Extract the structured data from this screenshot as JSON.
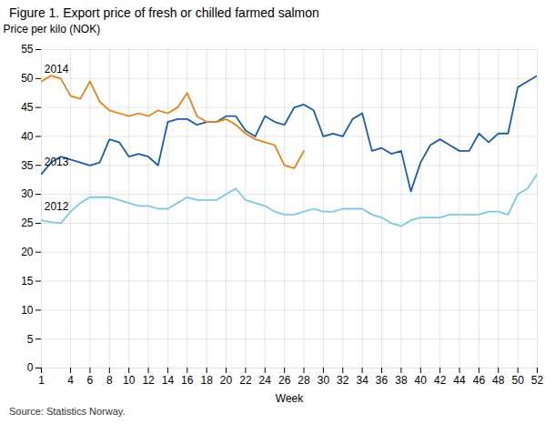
{
  "chart_data": {
    "type": "line",
    "title": "Figure 1. Export price of fresh or chilled farmed salmon",
    "ylabel": "Price per kilo (NOK)",
    "xlabel": "Week",
    "source": "Source: Statistics Norway.",
    "x": [
      1,
      2,
      3,
      4,
      5,
      6,
      7,
      8,
      9,
      10,
      11,
      12,
      13,
      14,
      15,
      16,
      17,
      18,
      19,
      20,
      21,
      22,
      23,
      24,
      25,
      26,
      27,
      28,
      29,
      30,
      31,
      32,
      33,
      34,
      35,
      36,
      37,
      38,
      39,
      40,
      41,
      42,
      43,
      44,
      45,
      46,
      47,
      48,
      49,
      50,
      51,
      52
    ],
    "series": [
      {
        "name": "2012",
        "color": "#7EC8E3",
        "values": [
          25.5,
          25.2,
          25.0,
          27.0,
          28.5,
          29.5,
          29.5,
          29.5,
          29.0,
          28.5,
          28.0,
          28.0,
          27.5,
          27.5,
          28.5,
          29.5,
          29.0,
          29.0,
          29.0,
          30.0,
          31.0,
          29.0,
          28.5,
          28.0,
          27.0,
          26.5,
          26.5,
          27.0,
          27.5,
          27.0,
          27.0,
          27.5,
          27.5,
          27.5,
          26.5,
          26.0,
          25.0,
          24.5,
          25.5,
          26.0,
          26.0,
          26.0,
          26.5,
          26.5,
          26.5,
          26.5,
          27.0,
          27.0,
          26.5,
          30.0,
          31.0,
          33.5
        ]
      },
      {
        "name": "2013",
        "color": "#1B5EA6",
        "values": [
          33.5,
          35.5,
          36.5,
          36.0,
          35.5,
          35.0,
          35.5,
          39.5,
          39.0,
          36.5,
          37.0,
          36.5,
          35.0,
          42.5,
          43.0,
          43.0,
          42.0,
          42.5,
          42.5,
          43.5,
          43.5,
          41.0,
          40.0,
          43.5,
          42.5,
          42.0,
          45.0,
          45.5,
          44.5,
          40.0,
          40.5,
          40.0,
          43.0,
          44.0,
          37.5,
          38.0,
          37.0,
          37.5,
          30.5,
          35.5,
          38.5,
          39.5,
          38.5,
          37.5,
          37.5,
          40.5,
          39.0,
          40.5,
          40.5,
          48.5,
          49.5,
          50.5
        ]
      },
      {
        "name": "2014",
        "color": "#E8821A",
        "values": [
          49.5,
          50.5,
          50.0,
          47.0,
          46.5,
          49.5,
          46.0,
          44.5,
          44.0,
          43.5,
          44.0,
          43.5,
          44.5,
          44.0,
          45.0,
          47.5,
          43.5,
          42.5,
          42.5,
          43.0,
          42.0,
          40.5,
          39.5,
          39.0,
          38.5,
          35.0,
          34.5,
          37.5,
          null,
          null,
          null,
          null,
          null,
          null,
          null,
          null,
          null,
          null,
          null,
          null,
          null,
          null,
          null,
          null,
          null,
          null,
          null,
          null,
          null,
          null,
          null,
          null
        ]
      }
    ],
    "annotations": [
      {
        "text": "2014",
        "x": 1.3,
        "y": 51.0
      },
      {
        "text": "2013",
        "x": 1.3,
        "y": 35.0
      },
      {
        "text": "2012",
        "x": 1.3,
        "y": 27.2
      }
    ],
    "xlim": [
      1,
      52
    ],
    "xticks": [
      1,
      4,
      6,
      8,
      10,
      12,
      14,
      16,
      18,
      20,
      22,
      24,
      26,
      28,
      30,
      32,
      34,
      36,
      38,
      40,
      42,
      44,
      46,
      48,
      50,
      52
    ],
    "ylim": [
      0,
      55
    ],
    "yticks": [
      0,
      5,
      10,
      15,
      20,
      25,
      30,
      35,
      40,
      45,
      50,
      55
    ],
    "grid": true
  }
}
